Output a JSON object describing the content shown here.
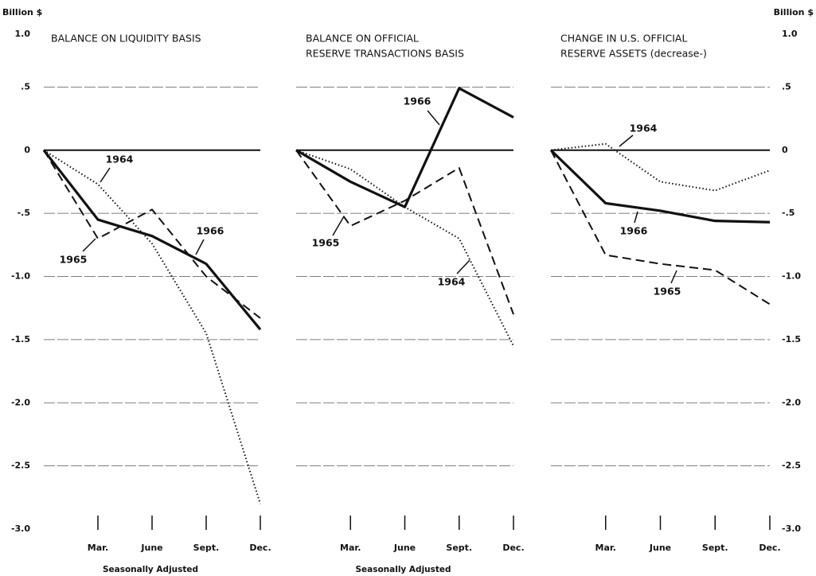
{
  "chart_data": [
    {
      "type": "line",
      "title": [
        "BALANCE ON LIQUIDITY BASIS"
      ],
      "y_label": "Billion $",
      "xlabel": "Seasonally Adjusted",
      "categories": [
        null,
        "Mar.",
        "June",
        "Sept.",
        "Dec."
      ],
      "ylim": [
        -3,
        1
      ],
      "yticks": [
        {
          "value": 1,
          "label": "1.0"
        },
        {
          "value": 0.5,
          "label": ".5"
        },
        0,
        {
          "value": -0.5,
          "label": "-.5"
        },
        {
          "value": -1,
          "label": "-1.0"
        },
        {
          "value": -1.5,
          "label": "-1.5"
        },
        {
          "value": -2,
          "label": "-2.0"
        },
        {
          "value": -2.5,
          "label": "-2.5"
        },
        {
          "value": -3,
          "label": "-3.0"
        }
      ],
      "grid": true,
      "series": [
        {
          "name": "1964",
          "color": "#111111",
          "style": "dotted",
          "values": [
            0,
            -0.27,
            -0.74,
            -1.45,
            -2.8
          ]
        },
        {
          "name": "1965",
          "color": "#111111",
          "style": "dashed",
          "values": [
            0,
            -0.7,
            -0.47,
            -1.0,
            -1.33
          ]
        },
        {
          "name": "1966",
          "color": "#111111",
          "style": "solid",
          "values": [
            0,
            -0.55,
            -0.68,
            -0.9,
            -1.42
          ]
        }
      ]
    },
    {
      "type": "line",
      "title": [
        "BALANCE ON OFFICIAL",
        "RESERVE TRANSACTIONS BASIS"
      ],
      "xlabel": "Seasonally Adjusted",
      "categories": [
        null,
        "Mar.",
        "June",
        "Sept.",
        "Dec."
      ],
      "ylim": [
        -3,
        1
      ],
      "yticks": [
        1,
        0.5,
        0,
        -0.5,
        -1,
        -1.5,
        -2,
        -2.5,
        -3
      ],
      "grid": true,
      "series": [
        {
          "name": "1964",
          "color": "#111111",
          "style": "dotted",
          "values": [
            0,
            -0.15,
            -0.45,
            -0.7,
            -1.55
          ]
        },
        {
          "name": "1965",
          "color": "#111111",
          "style": "dashed",
          "values": [
            0,
            -0.6,
            -0.4,
            -0.14,
            -1.3
          ]
        },
        {
          "name": "1966",
          "color": "#111111",
          "style": "solid",
          "values": [
            0,
            -0.25,
            -0.45,
            0.49,
            0.26
          ]
        }
      ]
    },
    {
      "type": "line",
      "title": [
        "CHANGE IN U.S. OFFICIAL",
        "RESERVE ASSETS (decrease-)"
      ],
      "y_label": "Billion $",
      "categories": [
        null,
        "Mar.",
        "June",
        "Sept.",
        "Dec."
      ],
      "ylim": [
        -3,
        1
      ],
      "yticks": [
        {
          "value": 1,
          "label": "1.0"
        },
        {
          "value": 0.5,
          "label": ".5"
        },
        0,
        {
          "value": -0.5,
          "label": "-.5"
        },
        {
          "value": -1,
          "label": "-1.0"
        },
        {
          "value": -1.5,
          "label": "-1.5"
        },
        {
          "value": -2,
          "label": "-2.0"
        },
        {
          "value": -2.5,
          "label": "-2.5"
        },
        {
          "value": -3,
          "label": "-3.0"
        }
      ],
      "grid": true,
      "series": [
        {
          "name": "1964",
          "color": "#111111",
          "style": "dotted",
          "values": [
            0,
            0.05,
            -0.25,
            -0.32,
            -0.16
          ]
        },
        {
          "name": "1965",
          "color": "#111111",
          "style": "dashed",
          "values": [
            0,
            -0.83,
            -0.9,
            -0.95,
            -1.22
          ]
        },
        {
          "name": "1966",
          "color": "#111111",
          "style": "solid",
          "values": [
            0,
            -0.42,
            -0.48,
            -0.56,
            -0.57
          ]
        }
      ]
    }
  ]
}
